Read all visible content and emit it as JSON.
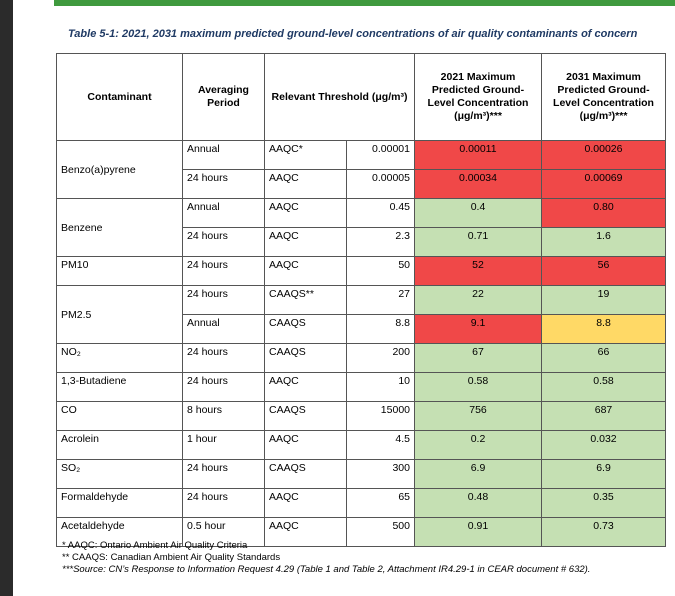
{
  "caption": "Table 5-1: 2021, 2031 maximum predicted ground-level concentrations of air quality contaminants of concern",
  "headers": {
    "contaminant": "Contaminant",
    "averaging": "Averaging Period",
    "threshold": "Relevant Threshold (μg/m³)",
    "y2021": "2021 Maximum Predicted Ground-Level Concentration (μg/m³)***",
    "y2031": "2031 Maximum Predicted Ground-Level Concentration (μg/m³)***"
  },
  "rows": [
    {
      "contaminant": "Benzo(a)pyrene",
      "period": "Annual",
      "std": "AAQC*",
      "threshold": "0.00001",
      "c2021": "0.00011",
      "c2031": "0.00026",
      "color2021": "red",
      "color2031": "red"
    },
    {
      "contaminant": "",
      "period": "24 hours",
      "std": "AAQC",
      "threshold": "0.00005",
      "c2021": "0.00034",
      "c2031": "0.00069",
      "color2021": "red",
      "color2031": "red"
    },
    {
      "contaminant": "Benzene",
      "period": "Annual",
      "std": "AAQC",
      "threshold": "0.45",
      "c2021": "0.4",
      "c2031": "0.80",
      "color2021": "green",
      "color2031": "red"
    },
    {
      "contaminant": "",
      "period": "24 hours",
      "std": "AAQC",
      "threshold": "2.3",
      "c2021": "0.71",
      "c2031": "1.6",
      "color2021": "green",
      "color2031": "green"
    },
    {
      "contaminant": "PM10",
      "period": "24 hours",
      "std": "AAQC",
      "threshold": "50",
      "c2021": "52",
      "c2031": "56",
      "color2021": "red",
      "color2031": "red"
    },
    {
      "contaminant": "PM2.5",
      "period": "24 hours",
      "std": "CAAQS**",
      "threshold": "27",
      "c2021": "22",
      "c2031": "19",
      "color2021": "green",
      "color2031": "green"
    },
    {
      "contaminant": "",
      "period": "Annual",
      "std": "CAAQS",
      "threshold": "8.8",
      "c2021": "9.1",
      "c2031": "8.8",
      "color2021": "red",
      "color2031": "yellow"
    },
    {
      "contaminant": "NO₂",
      "period": "24 hours",
      "std": "CAAQS",
      "threshold": "200",
      "c2021": "67",
      "c2031": "66",
      "color2021": "green",
      "color2031": "green"
    },
    {
      "contaminant": "1,3-Butadiene",
      "period": "24 hours",
      "std": "AAQC",
      "threshold": "10",
      "c2021": "0.58",
      "c2031": "0.58",
      "color2021": "green",
      "color2031": "green"
    },
    {
      "contaminant": "CO",
      "period": "8 hours",
      "std": "CAAQS",
      "threshold": "15000",
      "c2021": "756",
      "c2031": "687",
      "color2021": "green",
      "color2031": "green"
    },
    {
      "contaminant": "Acrolein",
      "period": "1 hour",
      "std": "AAQC",
      "threshold": "4.5",
      "c2021": "0.2",
      "c2031": "0.032",
      "color2021": "green",
      "color2031": "green"
    },
    {
      "contaminant": "SO₂",
      "period": "24 hours",
      "std": "CAAQS",
      "threshold": "300",
      "c2021": "6.9",
      "c2031": "6.9",
      "color2021": "green",
      "color2031": "green"
    },
    {
      "contaminant": "Formaldehyde",
      "period": "24 hours",
      "std": "AAQC",
      "threshold": "65",
      "c2021": "0.48",
      "c2031": "0.35",
      "color2021": "green",
      "color2031": "green"
    },
    {
      "contaminant": "Acetaldehyde",
      "period": "0.5 hour",
      "std": "AAQC",
      "threshold": "500",
      "c2021": "0.91",
      "c2031": "0.73",
      "color2021": "green",
      "color2031": "green"
    }
  ],
  "notes": {
    "n1": "* AAQC: Ontario Ambient Air Quality Criteria",
    "n2": "** CAAQS: Canadian Ambient Air Quality Standards",
    "n3": "***Source: CN’s Response to Information Request 4.29 (Table 1 and Table 2, Attachment IR4.29-1 in CEAR document # 632)."
  },
  "colors": {
    "red": "#f04848",
    "green": "#c5e0b3",
    "yellow": "#ffd966",
    "accent": "#3f9a3e"
  }
}
